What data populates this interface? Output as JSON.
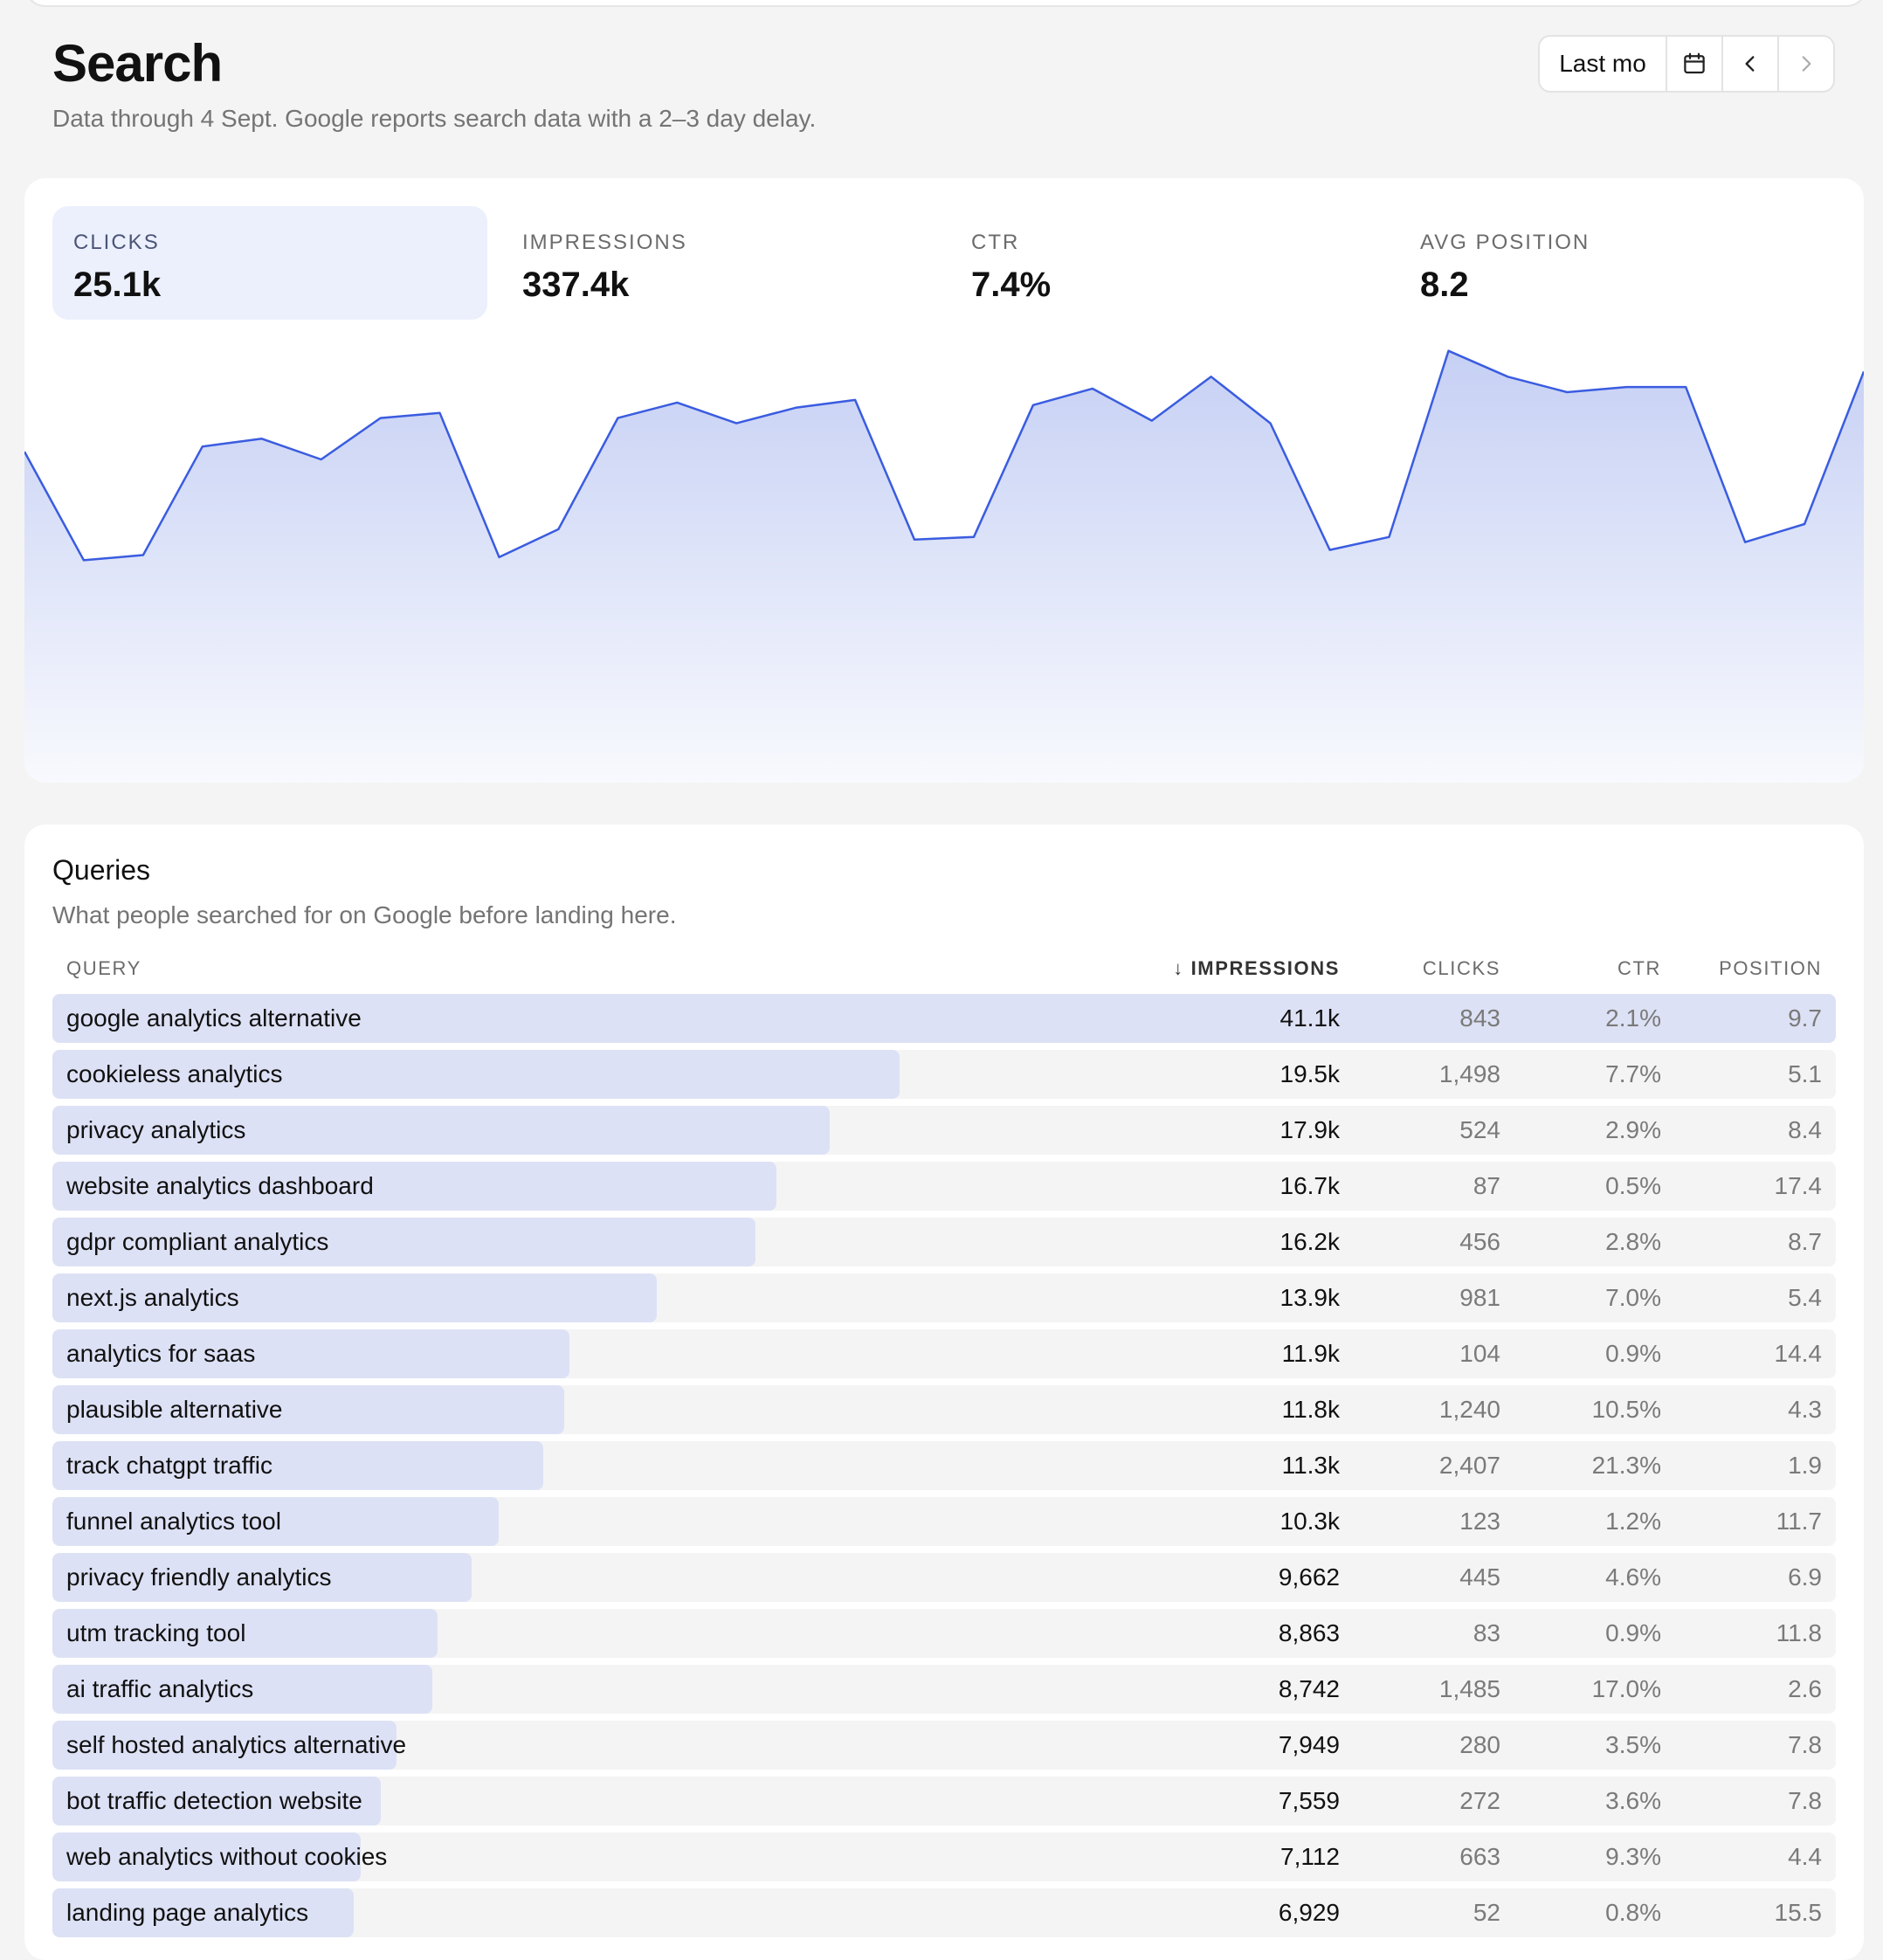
{
  "header": {
    "title": "Search",
    "subtitle": "Data through 4 Sept. Google reports search data with a 2–3 day delay.",
    "range_label": "Last mo",
    "calendar_icon": "calendar-icon",
    "prev_icon": "chevron-left-icon",
    "next_icon": "chevron-right-icon"
  },
  "metrics": [
    {
      "label": "CLICKS",
      "value": "25.1k",
      "active": true
    },
    {
      "label": "IMPRESSIONS",
      "value": "337.4k",
      "active": false
    },
    {
      "label": "CTR",
      "value": "7.4%",
      "active": false
    },
    {
      "label": "AVG POSITION",
      "value": "8.2",
      "active": false
    }
  ],
  "colors": {
    "line": "#3a5ce0",
    "area_top": "#c6d0f4",
    "bar": "#dde1f5"
  },
  "chart_data": {
    "type": "area",
    "series": [
      {
        "values": [
          640,
          430,
          440,
          650,
          665,
          625,
          705,
          715,
          436,
          490,
          705,
          735,
          695,
          725,
          740,
          470,
          475,
          730,
          762,
          700,
          785,
          695,
          450,
          475,
          835,
          785,
          755,
          765,
          765,
          465,
          500,
          795
        ]
      }
    ],
    "ylim": [
      0,
      1000
    ],
    "grid": false
  },
  "queries": {
    "title": "Queries",
    "subtitle": "What people searched for on Google before landing here.",
    "columns": {
      "query": "QUERY",
      "sort_icon": "↓",
      "impressions": "IMPRESSIONS",
      "clicks": "CLICKS",
      "ctr": "CTR",
      "position": "POSITION"
    },
    "rows": [
      {
        "query": "google analytics alternative",
        "impressions": "41.1k",
        "clicks": "843",
        "ctr": "2.1%",
        "position": "9.7",
        "share": 1.0
      },
      {
        "query": "cookieless analytics",
        "impressions": "19.5k",
        "clicks": "1,498",
        "ctr": "7.7%",
        "position": "5.1",
        "share": 0.475
      },
      {
        "query": "privacy analytics",
        "impressions": "17.9k",
        "clicks": "524",
        "ctr": "2.9%",
        "position": "8.4",
        "share": 0.436
      },
      {
        "query": "website analytics dashboard",
        "impressions": "16.7k",
        "clicks": "87",
        "ctr": "0.5%",
        "position": "17.4",
        "share": 0.406
      },
      {
        "query": "gdpr compliant analytics",
        "impressions": "16.2k",
        "clicks": "456",
        "ctr": "2.8%",
        "position": "8.7",
        "share": 0.394
      },
      {
        "query": "next.js analytics",
        "impressions": "13.9k",
        "clicks": "981",
        "ctr": "7.0%",
        "position": "5.4",
        "share": 0.339
      },
      {
        "query": "analytics for saas",
        "impressions": "11.9k",
        "clicks": "104",
        "ctr": "0.9%",
        "position": "14.4",
        "share": 0.29
      },
      {
        "query": "plausible alternative",
        "impressions": "11.8k",
        "clicks": "1,240",
        "ctr": "10.5%",
        "position": "4.3",
        "share": 0.287
      },
      {
        "query": "track chatgpt traffic",
        "impressions": "11.3k",
        "clicks": "2,407",
        "ctr": "21.3%",
        "position": "1.9",
        "share": 0.275
      },
      {
        "query": "funnel analytics tool",
        "impressions": "10.3k",
        "clicks": "123",
        "ctr": "1.2%",
        "position": "11.7",
        "share": 0.25
      },
      {
        "query": "privacy friendly analytics",
        "impressions": "9,662",
        "clicks": "445",
        "ctr": "4.6%",
        "position": "6.9",
        "share": 0.235
      },
      {
        "query": "utm tracking tool",
        "impressions": "8,863",
        "clicks": "83",
        "ctr": "0.9%",
        "position": "11.8",
        "share": 0.216
      },
      {
        "query": "ai traffic analytics",
        "impressions": "8,742",
        "clicks": "1,485",
        "ctr": "17.0%",
        "position": "2.6",
        "share": 0.213
      },
      {
        "query": "self hosted analytics alternative",
        "impressions": "7,949",
        "clicks": "280",
        "ctr": "3.5%",
        "position": "7.8",
        "share": 0.193
      },
      {
        "query": "bot traffic detection website",
        "impressions": "7,559",
        "clicks": "272",
        "ctr": "3.6%",
        "position": "7.8",
        "share": 0.184
      },
      {
        "query": "web analytics without cookies",
        "impressions": "7,112",
        "clicks": "663",
        "ctr": "9.3%",
        "position": "4.4",
        "share": 0.173
      },
      {
        "query": "landing page analytics",
        "impressions": "6,929",
        "clicks": "52",
        "ctr": "0.8%",
        "position": "15.5",
        "share": 0.169
      }
    ]
  }
}
